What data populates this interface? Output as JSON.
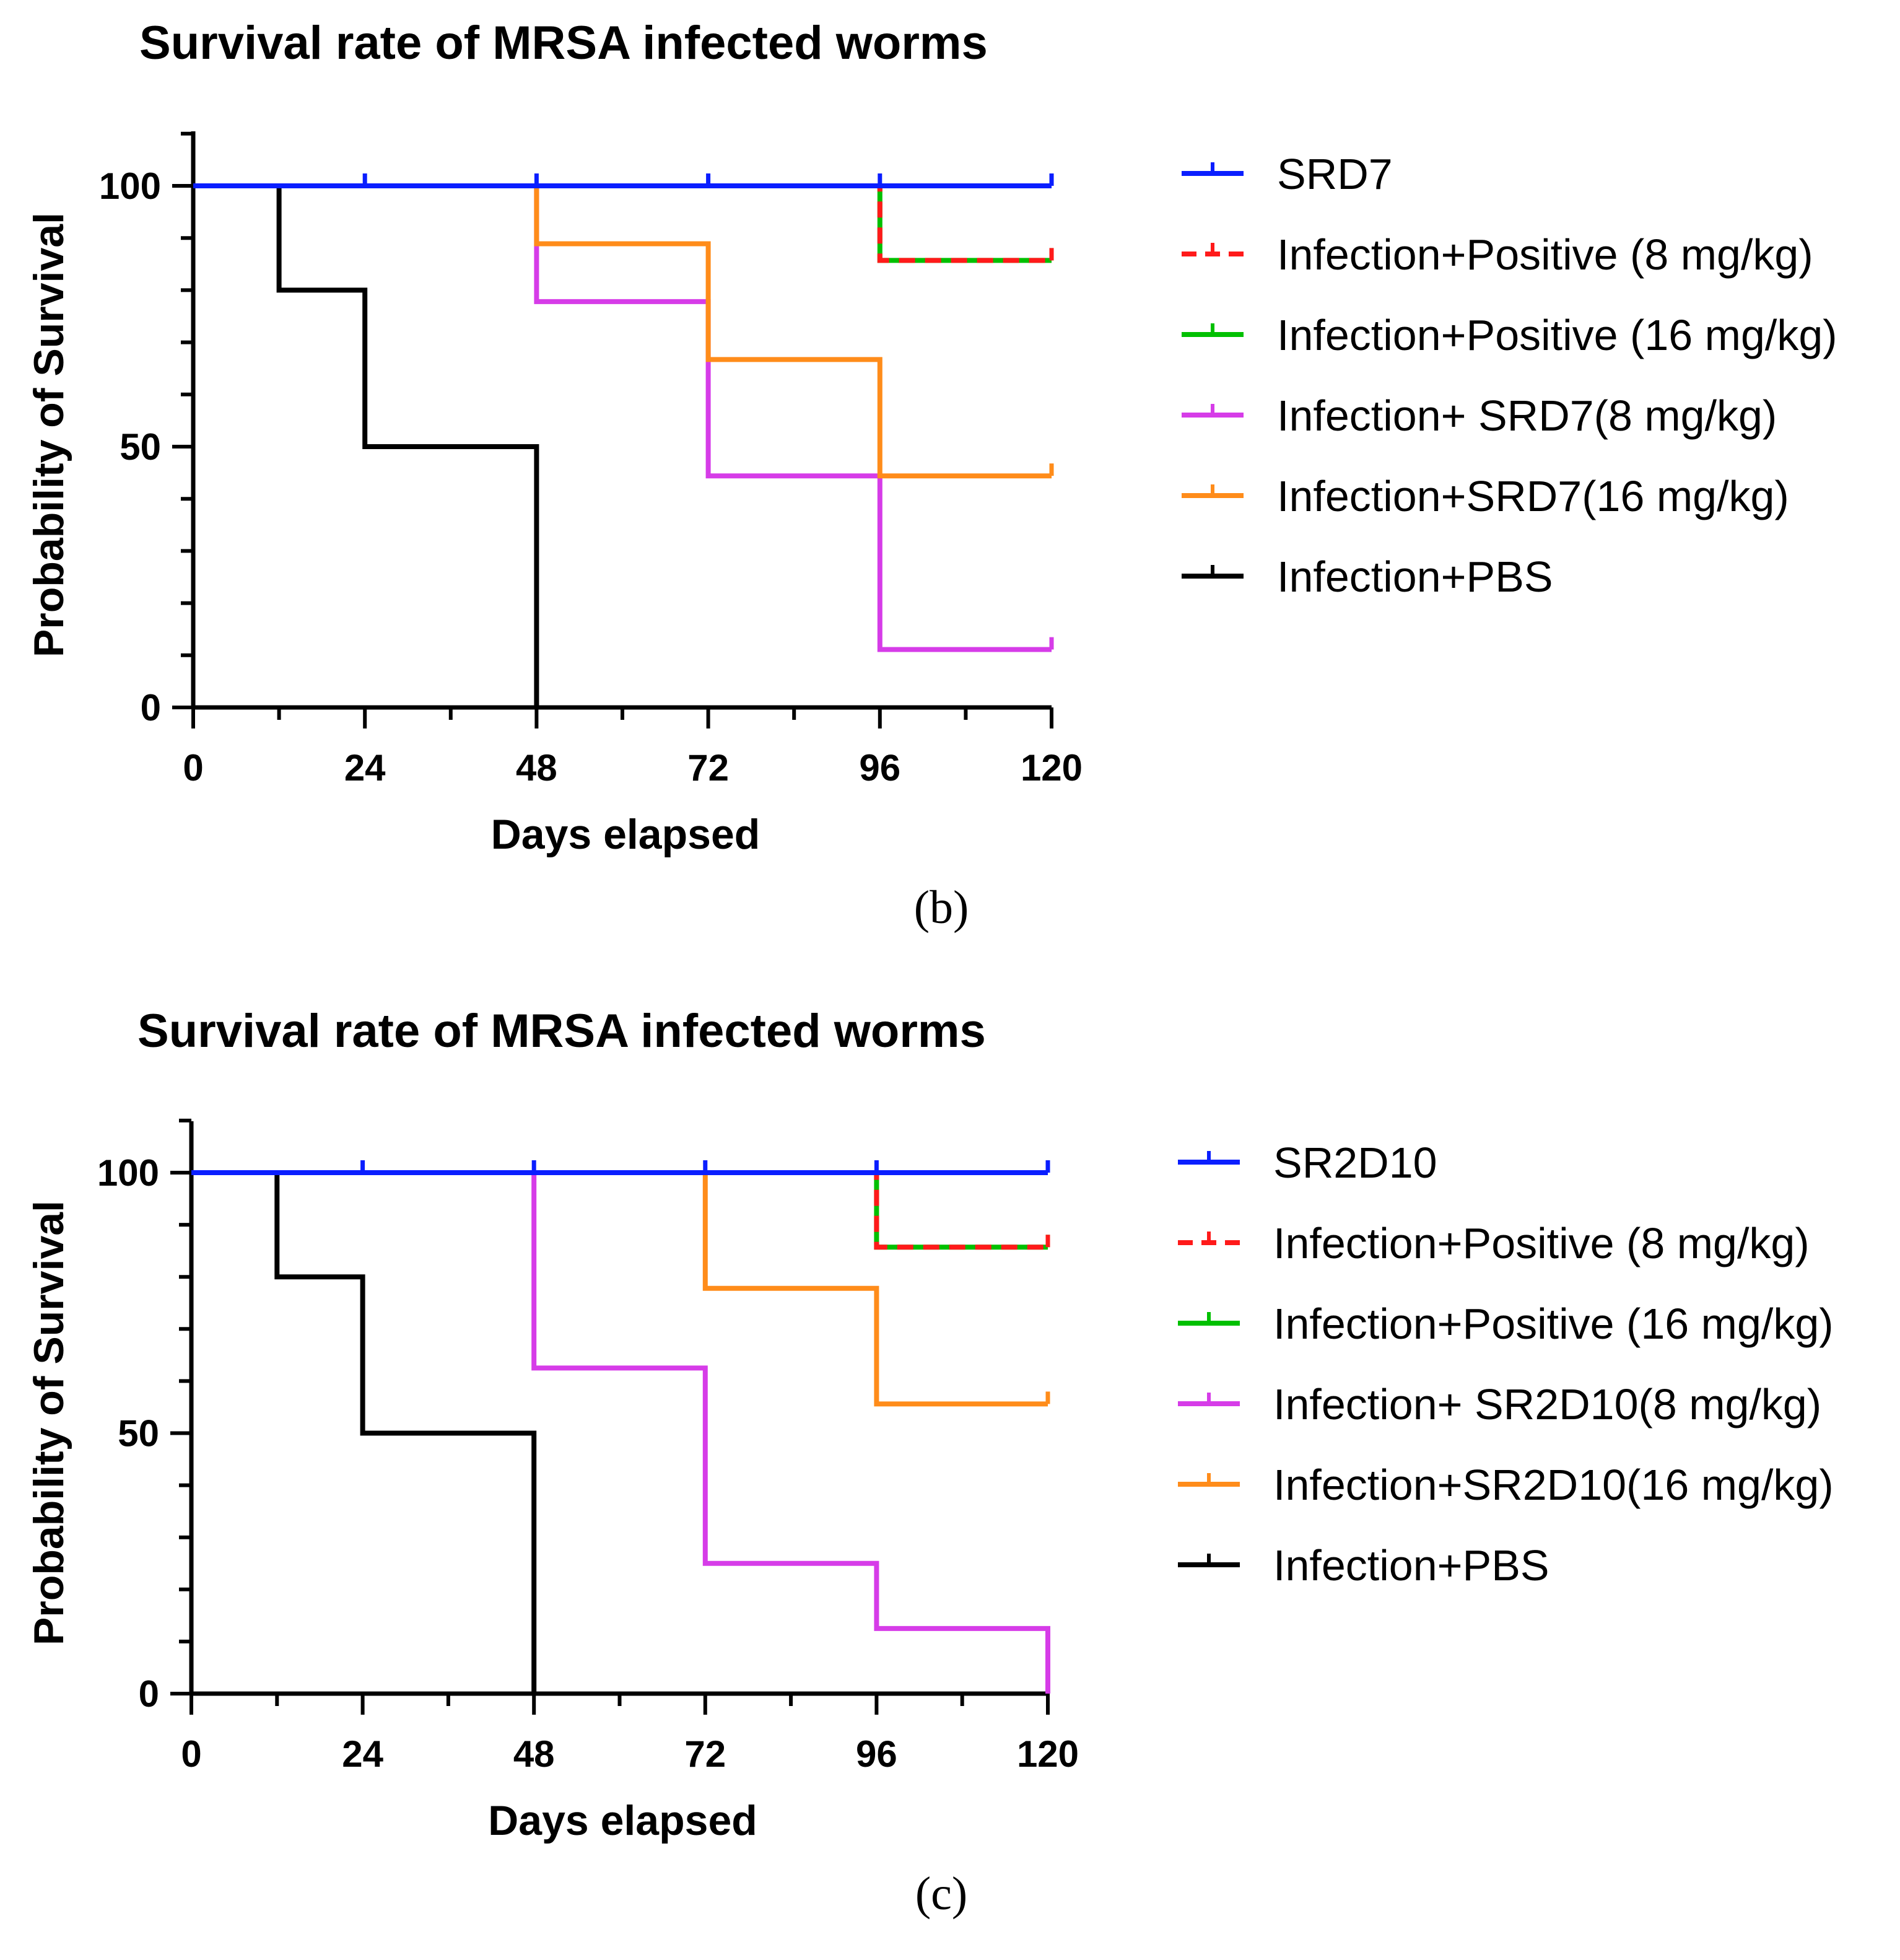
{
  "chart_data": [
    {
      "type": "line",
      "subtype": "kaplan-meier",
      "panel_label": "(b)",
      "title": "Survival rate of MRSA infected worms",
      "xlabel": "Days elapsed",
      "ylabel": "Probability of Survival",
      "xlim": [
        0,
        120
      ],
      "ylim": [
        0,
        110
      ],
      "xticks": [
        0,
        24,
        48,
        72,
        96,
        120
      ],
      "yticks": [
        0,
        50,
        100
      ],
      "legend_position": "right",
      "series": [
        {
          "name": "SRD7",
          "color": "#0a1eff",
          "dash": false,
          "points": [
            [
              0,
              100
            ],
            [
              120,
              100
            ]
          ],
          "censor": [
            24,
            48,
            72,
            96,
            120
          ]
        },
        {
          "name": "Infection+Positive (8 mg/kg)",
          "color": "#ff1a1a",
          "dash": true,
          "points": [
            [
              0,
              100
            ],
            [
              96,
              100
            ],
            [
              96,
              85.7
            ],
            [
              120,
              85.7
            ]
          ],
          "censor": [
            120
          ]
        },
        {
          "name": "Infection+Positive (16 mg/kg)",
          "color": "#00c000",
          "dash": false,
          "points": [
            [
              0,
              100
            ],
            [
              96,
              100
            ],
            [
              96,
              85.7
            ],
            [
              120,
              85.7
            ]
          ],
          "censor": [
            120
          ]
        },
        {
          "name": "Infection+ SRD7(8 mg/kg)",
          "color": "#d63ce8",
          "dash": false,
          "points": [
            [
              0,
              100
            ],
            [
              48,
              100
            ],
            [
              48,
              77.8
            ],
            [
              72,
              77.8
            ],
            [
              72,
              44.4
            ],
            [
              96,
              44.4
            ],
            [
              96,
              11.1
            ],
            [
              120,
              11.1
            ]
          ],
          "censor": [
            120
          ]
        },
        {
          "name": "Infection+SRD7(16 mg/kg)",
          "color": "#ff8c1a",
          "dash": false,
          "points": [
            [
              0,
              100
            ],
            [
              48,
              100
            ],
            [
              48,
              88.9
            ],
            [
              72,
              88.9
            ],
            [
              72,
              66.7
            ],
            [
              96,
              66.7
            ],
            [
              96,
              44.4
            ],
            [
              120,
              44.4
            ]
          ],
          "censor": [
            120
          ]
        },
        {
          "name": "Infection+PBS",
          "color": "#000000",
          "dash": false,
          "points": [
            [
              0,
              100
            ],
            [
              12,
              100
            ],
            [
              12,
              80
            ],
            [
              24,
              80
            ],
            [
              24,
              50
            ],
            [
              48,
              50
            ],
            [
              48,
              0
            ]
          ],
          "censor": []
        }
      ]
    },
    {
      "type": "line",
      "subtype": "kaplan-meier",
      "panel_label": "(c)",
      "title": "Survival rate of MRSA infected worms",
      "xlabel": "Days elapsed",
      "ylabel": "Probability of Survival",
      "xlim": [
        0,
        120
      ],
      "ylim": [
        0,
        110
      ],
      "xticks": [
        0,
        24,
        48,
        72,
        96,
        120
      ],
      "yticks": [
        0,
        50,
        100
      ],
      "legend_position": "right",
      "series": [
        {
          "name": "SR2D10",
          "color": "#0a1eff",
          "dash": false,
          "points": [
            [
              0,
              100
            ],
            [
              120,
              100
            ]
          ],
          "censor": [
            24,
            48,
            72,
            96,
            120
          ]
        },
        {
          "name": "Infection+Positive (8 mg/kg)",
          "color": "#ff1a1a",
          "dash": true,
          "points": [
            [
              0,
              100
            ],
            [
              96,
              100
            ],
            [
              96,
              85.7
            ],
            [
              120,
              85.7
            ]
          ],
          "censor": [
            120
          ]
        },
        {
          "name": "Infection+Positive (16 mg/kg)",
          "color": "#00c000",
          "dash": false,
          "points": [
            [
              0,
              100
            ],
            [
              96,
              100
            ],
            [
              96,
              85.7
            ],
            [
              120,
              85.7
            ]
          ],
          "censor": [
            120
          ]
        },
        {
          "name": "Infection+ SR2D10(8 mg/kg)",
          "color": "#d63ce8",
          "dash": false,
          "points": [
            [
              0,
              100
            ],
            [
              48,
              100
            ],
            [
              48,
              62.5
            ],
            [
              72,
              62.5
            ],
            [
              72,
              25
            ],
            [
              96,
              25
            ],
            [
              96,
              12.5
            ],
            [
              120,
              12.5
            ],
            [
              120,
              0
            ]
          ],
          "censor": []
        },
        {
          "name": "Infection+SR2D10(16 mg/kg)",
          "color": "#ff8c1a",
          "dash": false,
          "points": [
            [
              0,
              100
            ],
            [
              72,
              100
            ],
            [
              72,
              77.8
            ],
            [
              96,
              77.8
            ],
            [
              96,
              55.6
            ],
            [
              120,
              55.6
            ]
          ],
          "censor": [
            120
          ]
        },
        {
          "name": "Infection+PBS",
          "color": "#000000",
          "dash": false,
          "points": [
            [
              0,
              100
            ],
            [
              12,
              100
            ],
            [
              12,
              80
            ],
            [
              24,
              80
            ],
            [
              24,
              50
            ],
            [
              48,
              50
            ],
            [
              48,
              0
            ]
          ],
          "censor": []
        }
      ]
    }
  ]
}
